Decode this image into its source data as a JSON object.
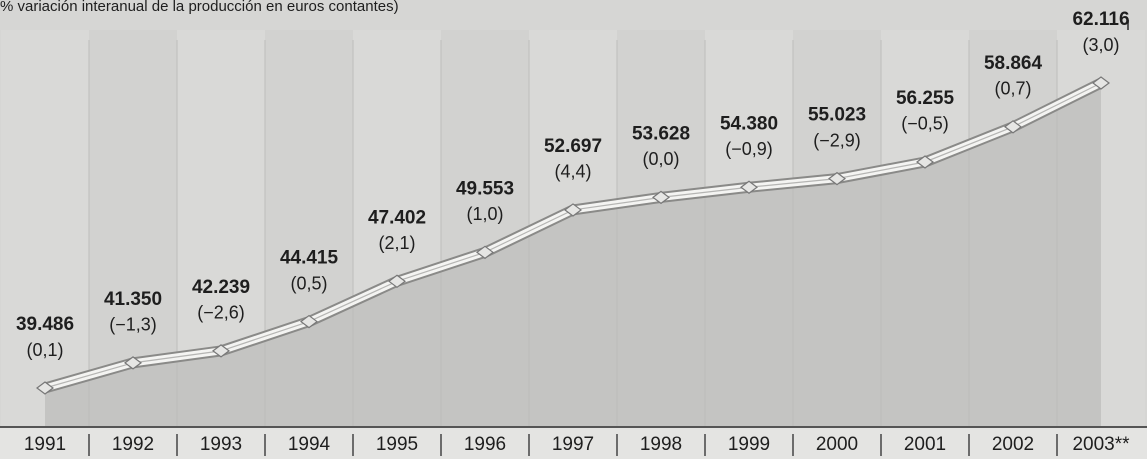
{
  "chart_data": {
    "type": "area",
    "title": "% variación interanual de la producción en euros contantes)",
    "categories": [
      "1991",
      "1992",
      "1993",
      "1994",
      "1995",
      "1996",
      "1997",
      "1998",
      "1999",
      "2000",
      "2001",
      "2002",
      "2003**"
    ],
    "values": [
      39486,
      41350,
      42239,
      44415,
      47402,
      49553,
      52697,
      53628,
      54380,
      55023,
      56255,
      58864,
      62116
    ],
    "value_labels": [
      "39.486",
      "41.350",
      "42.239",
      "44.415",
      "47.402",
      "49.553",
      "52.697",
      "53.628",
      "54.380",
      "55.023",
      "56.255",
      "58.864",
      "62.116"
    ],
    "annotations": [
      "(0,1)",
      "(−1,3)",
      "(−2,6)",
      "(0,5)",
      "(2,1)",
      "(1,0)",
      "(4,4)",
      "(0,0)",
      "(−0,9)",
      "(−2,9)",
      "(−0,5)",
      "(0,7)",
      "(3,0)"
    ],
    "color": "#c4c4c2"
  }
}
